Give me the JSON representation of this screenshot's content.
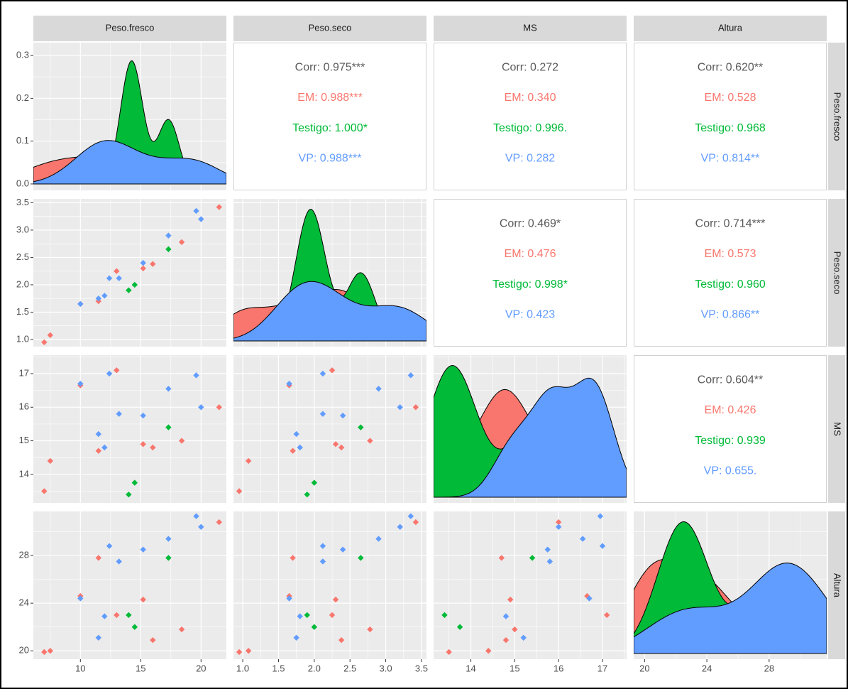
{
  "chart_data": {
    "type": "pairs",
    "variables": [
      {
        "name": "Peso.fresco",
        "lim": [
          6.1,
          22.1
        ],
        "ticks": [
          10,
          15,
          20
        ]
      },
      {
        "name": "Peso.seco",
        "lim": [
          0.87,
          3.57
        ],
        "ticks": [
          {
            "value": 1,
            "label": "1.0"
          },
          1.5,
          {
            "value": 2,
            "label": "2.0"
          },
          2.5,
          {
            "value": 3,
            "label": "3.0"
          },
          3.5
        ]
      },
      {
        "name": "MS",
        "lim": [
          13.15,
          17.55
        ],
        "ticks": [
          14,
          15,
          16,
          17
        ]
      },
      {
        "name": "Altura",
        "lim": [
          19.3,
          31.7
        ],
        "ticks": [
          20,
          24,
          28
        ]
      }
    ],
    "density_ylim": [
      -0.015,
      0.33
    ],
    "density_yticks": [
      {
        "value": 0,
        "label": "0.0"
      },
      0.1,
      0.2,
      0.3
    ],
    "series": [
      {
        "name": "EM",
        "color": "#f8766d",
        "values": [
          [
            7.0,
            7.5,
            10.0,
            11.5,
            13.0,
            15.2,
            16.0,
            18.4,
            21.5
          ],
          [
            0.95,
            1.08,
            1.65,
            1.7,
            2.25,
            2.3,
            2.38,
            2.78,
            3.42
          ],
          [
            13.5,
            14.4,
            16.65,
            14.7,
            17.1,
            14.9,
            14.8,
            15.0,
            16.0
          ],
          [
            19.9,
            20.0,
            24.6,
            27.8,
            23.0,
            24.3,
            20.9,
            21.8,
            30.8
          ]
        ]
      },
      {
        "name": "Testigo",
        "color": "#00ba38",
        "values": [
          [
            14.0,
            14.5,
            17.3
          ],
          [
            1.9,
            2.0,
            2.65
          ],
          [
            13.4,
            13.75,
            15.4
          ],
          [
            23.0,
            22.0,
            27.8
          ]
        ]
      },
      {
        "name": "VP",
        "color": "#619cff",
        "values": [
          [
            10.0,
            11.5,
            12.0,
            12.4,
            13.2,
            15.2,
            17.3,
            19.6,
            20.0
          ],
          [
            1.65,
            1.75,
            1.8,
            2.12,
            2.12,
            2.4,
            2.9,
            3.35,
            3.2
          ],
          [
            16.7,
            15.2,
            14.8,
            17.0,
            15.8,
            15.75,
            16.55,
            16.95,
            16.0
          ],
          [
            24.4,
            21.1,
            22.9,
            28.8,
            27.5,
            28.5,
            29.4,
            31.3,
            30.4
          ]
        ]
      }
    ],
    "correlations": [
      {
        "values": [
          0.975,
          0.988,
          1.0,
          0.988
        ],
        "value_labels": [
          "Corr: 0.975***",
          "EM: 0.988***",
          "Testigo: 1.000*",
          "VP: 0.988***"
        ]
      },
      {
        "values": [
          0.272,
          0.34,
          0.996,
          0.282
        ],
        "value_labels": [
          "Corr: 0.272",
          "EM: 0.340",
          "Testigo: 0.996.",
          "VP: 0.282"
        ]
      },
      {
        "values": [
          0.62,
          0.528,
          0.968,
          0.814
        ],
        "value_labels": [
          "Corr: 0.620**",
          "EM: 0.528",
          "Testigo: 0.968",
          "VP: 0.814**"
        ]
      },
      {
        "values": [
          0.469,
          0.476,
          0.998,
          0.423
        ],
        "value_labels": [
          "Corr: 0.469*",
          "EM: 0.476",
          "Testigo: 0.998*",
          "VP: 0.423"
        ]
      },
      {
        "values": [
          0.714,
          0.573,
          0.96,
          0.866
        ],
        "value_labels": [
          "Corr: 0.714***",
          "EM: 0.573",
          "Testigo: 0.960",
          "VP: 0.866**"
        ]
      },
      {
        "values": [
          0.604,
          0.426,
          0.939,
          0.655
        ],
        "value_labels": [
          "Corr: 0.604**",
          "EM: 0.426",
          "Testigo: 0.939",
          "VP: 0.655."
        ]
      }
    ],
    "corr_color": "#595959",
    "grid": true
  }
}
